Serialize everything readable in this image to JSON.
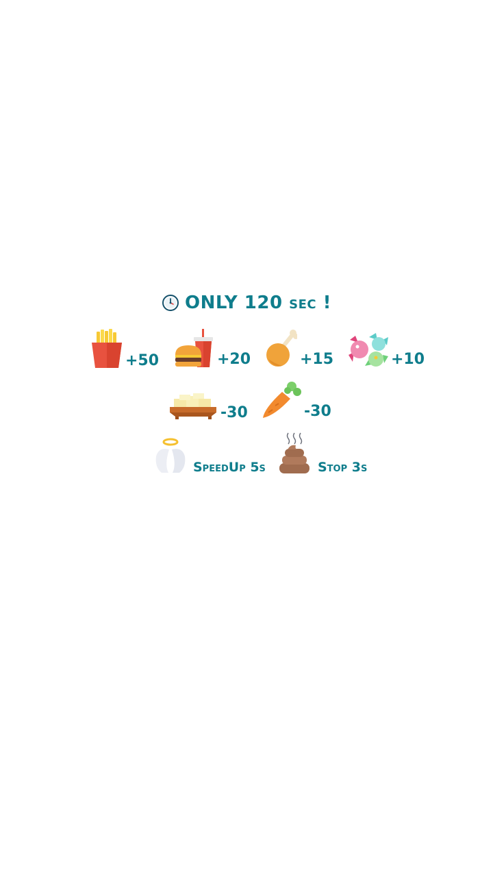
{
  "title": {
    "text": "ONLY 120 sec !",
    "icon": "clock-icon"
  },
  "colors": {
    "accent": "#0f7d8c"
  },
  "items": {
    "fries": {
      "icon": "fries-icon",
      "value": "+50"
    },
    "burger": {
      "icon": "burger-soda-icon",
      "value": "+20"
    },
    "chicken": {
      "icon": "chicken-leg-icon",
      "value": "+15"
    },
    "candy": {
      "icon": "candy-icon",
      "value": "+10"
    },
    "tofu": {
      "icon": "tofu-icon",
      "value": "-30"
    },
    "carrot": {
      "icon": "carrot-icon",
      "value": "-30"
    }
  },
  "powerups": {
    "speedup": {
      "icon": "angel-wings-icon",
      "label": "SpeedUp 5s"
    },
    "stop": {
      "icon": "poop-icon",
      "label": "Stop 3s"
    }
  }
}
